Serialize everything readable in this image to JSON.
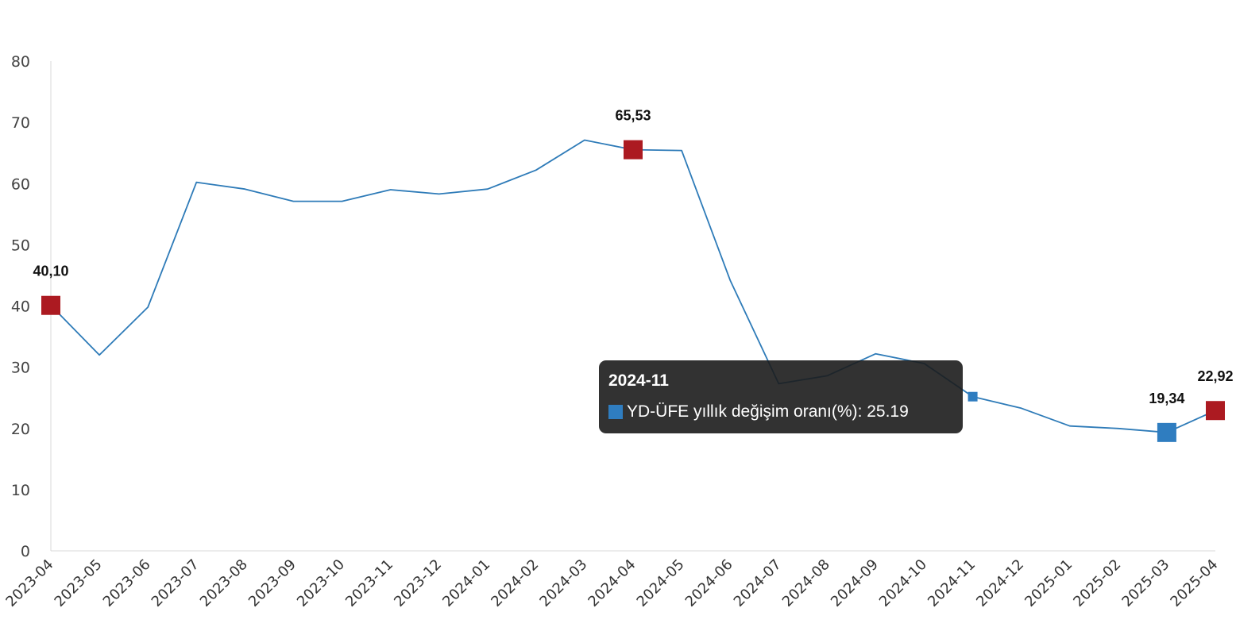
{
  "chart_data": {
    "type": "line",
    "title": "",
    "xlabel": "",
    "ylabel": "",
    "ylim": [
      0,
      80
    ],
    "yticks": [
      0,
      10,
      20,
      30,
      40,
      50,
      60,
      70,
      80
    ],
    "grid": false,
    "categories": [
      "2023-04",
      "2023-05",
      "2023-06",
      "2023-07",
      "2023-08",
      "2023-09",
      "2023-10",
      "2023-11",
      "2023-12",
      "2024-01",
      "2024-02",
      "2024-03",
      "2024-04",
      "2024-05",
      "2024-06",
      "2024-07",
      "2024-08",
      "2024-09",
      "2024-10",
      "2024-11",
      "2024-12",
      "2025-01",
      "2025-02",
      "2025-03",
      "2025-04"
    ],
    "series": [
      {
        "name": "YD-ÜFE yıllık değişim oranı(%)",
        "color": "#2e7bb8",
        "values": [
          40.1,
          32.0,
          39.8,
          60.2,
          59.1,
          57.1,
          57.1,
          59.0,
          58.3,
          59.1,
          62.2,
          67.1,
          65.53,
          65.4,
          44.2,
          27.3,
          28.6,
          32.2,
          30.6,
          25.19,
          23.3,
          20.4,
          20.0,
          19.34,
          22.92
        ]
      }
    ],
    "highlights": [
      {
        "index": 0,
        "label": "40,10",
        "color": "#ac1a21"
      },
      {
        "index": 12,
        "label": "65,53",
        "color": "#ac1a21"
      },
      {
        "index": 23,
        "label": "19,34",
        "color": "#2f7dc0"
      },
      {
        "index": 24,
        "label": "22,92",
        "color": "#ac1a21"
      }
    ],
    "tooltip": {
      "index": 19,
      "title": "2024-11",
      "series_label": "YD-ÜFE yıllık değişim oranı(%)",
      "value_text": "25.19",
      "swatch_color": "#2f7dc0"
    }
  }
}
